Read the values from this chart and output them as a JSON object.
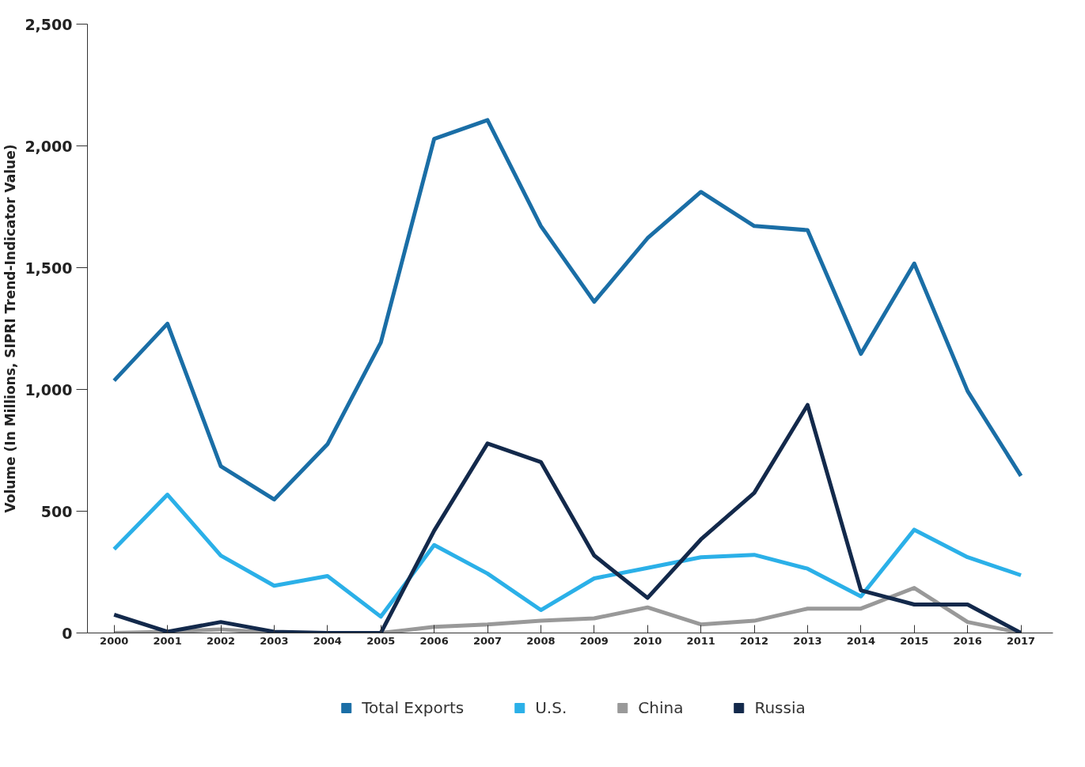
{
  "chart_data": {
    "type": "line",
    "ylabel": "Volume (In Millions, SIPRI Trend-Indicator Value)",
    "categories": [
      "2000",
      "2001",
      "2002",
      "2003",
      "2004",
      "2005",
      "2006",
      "2007",
      "2008",
      "2009",
      "2010",
      "2011",
      "2012",
      "2013",
      "2014",
      "2015",
      "2016",
      "2017"
    ],
    "series": [
      {
        "name": "Total Exports",
        "color": "#1a6ea6",
        "values": [
          1036,
          1270,
          685,
          548,
          775,
          1193,
          2029,
          2106,
          1671,
          1360,
          1621,
          1811,
          1671,
          1654,
          1146,
          1517,
          993,
          645
        ]
      },
      {
        "name": "U.S.",
        "color": "#2bb0e8",
        "values": [
          344,
          568,
          318,
          194,
          234,
          67,
          361,
          244,
          94,
          224,
          267,
          311,
          321,
          264,
          150,
          424,
          311,
          237
        ]
      },
      {
        "name": "China",
        "color": "#999999",
        "values": [
          0,
          5,
          15,
          0,
          0,
          0,
          25,
          35,
          50,
          60,
          105,
          35,
          50,
          100,
          100,
          185,
          45,
          0
        ]
      },
      {
        "name": "Russia",
        "color": "#13294b",
        "values": [
          75,
          5,
          45,
          5,
          0,
          0,
          420,
          778,
          702,
          318,
          144,
          384,
          575,
          936,
          175,
          117,
          117,
          0
        ]
      }
    ],
    "ylim": [
      0,
      2500
    ],
    "yticks": [
      {
        "value": 0,
        "label": "0"
      },
      {
        "value": 500,
        "label": "500"
      },
      {
        "value": 1000,
        "label": "1,000"
      },
      {
        "value": 1500,
        "label": "1,500"
      },
      {
        "value": 2000,
        "label": "2,000"
      },
      {
        "value": 2500,
        "label": "2,500"
      }
    ],
    "grid": false,
    "legend": "bottom",
    "marker": "none",
    "line_style": "solid"
  }
}
